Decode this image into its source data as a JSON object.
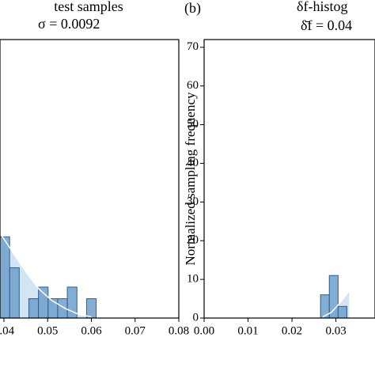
{
  "chart_data": [
    {
      "type": "histogram",
      "title": "test samples",
      "subtitle": "σ = 0.0092",
      "bins": [
        0.0391,
        0.0413,
        0.0435,
        0.0457,
        0.0479,
        0.0501,
        0.0523,
        0.0545,
        0.0567,
        0.0589,
        0.0611
      ],
      "counts": [
        21,
        13,
        0,
        5,
        8,
        5,
        5,
        8,
        0,
        5
      ],
      "color": "#6f9fcb",
      "kde": {
        "x": [
          0.0391,
          0.042,
          0.045,
          0.048,
          0.051,
          0.054,
          0.057,
          0.06
        ],
        "values": [
          22,
          17,
          12,
          7.5,
          4.5,
          2.5,
          1,
          0.3
        ],
        "color": "#ffffff",
        "fill": "#d3e4f2"
      },
      "xlim": [
        0.0391,
        0.08
      ],
      "xticks": [
        0.04,
        0.05,
        0.06,
        0.07,
        0.08
      ],
      "ylim": [
        0,
        72
      ]
    },
    {
      "type": "histogram",
      "panel_label": "(b)",
      "title": "δf-histog",
      "subtitle": "δ̄f = 0.04",
      "y_label": "Normalized sampling frequency",
      "bins": [
        0.0265,
        0.0285,
        0.0305,
        0.0325
      ],
      "counts": [
        6,
        11,
        3
      ],
      "color": "#6f9fcb",
      "kde": {
        "x": [
          0.027,
          0.029,
          0.031,
          0.033
        ],
        "values": [
          0.3,
          1.5,
          4,
          7
        ],
        "color": "#ffffff",
        "fill": "#d3e4f2"
      },
      "xlim": [
        0,
        0.0389
      ],
      "xticks": [
        {
          "value": 0,
          "label": "0.00"
        },
        0.01,
        0.02,
        0.03
      ],
      "ylim": [
        0,
        72
      ],
      "yticks": [
        0,
        10,
        20,
        30,
        40,
        50,
        60,
        70
      ]
    }
  ]
}
